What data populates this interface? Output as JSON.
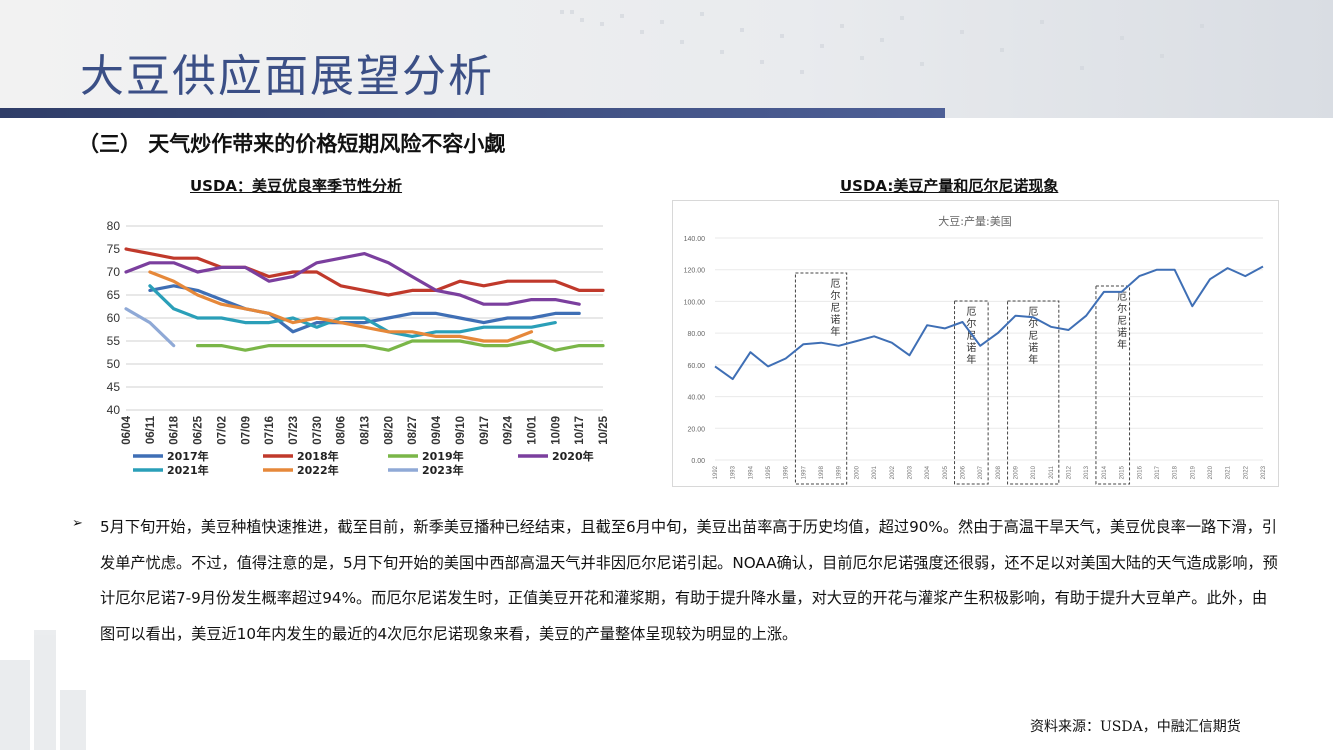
{
  "header": {
    "title": "大豆供应面展望分析",
    "subtitle": "（三）  天气炒作带来的价格短期风险不容小觑"
  },
  "colors": {
    "title_blue": "#3b4f86",
    "bar_dark": "#2f3d68"
  },
  "chart_left_caption": "USDA：美豆优良率季节性分析",
  "chart_right_caption": "USDA:美豆产量和厄尔尼诺现象",
  "chart_data": [
    {
      "type": "line",
      "title": "",
      "x": [
        "06/04",
        "06/11",
        "06/18",
        "06/25",
        "07/02",
        "07/09",
        "07/16",
        "07/23",
        "07/30",
        "08/06",
        "08/13",
        "08/20",
        "08/27",
        "09/04",
        "09/10",
        "09/17",
        "09/24",
        "10/01",
        "10/09",
        "10/17",
        "10/25"
      ],
      "yticks": [
        40,
        45,
        50,
        55,
        60,
        65,
        70,
        75,
        80
      ],
      "ylim": [
        40,
        80
      ],
      "legend_position": "bottom",
      "series": [
        {
          "name": "2017年",
          "color": "#3f6fb5",
          "values": [
            null,
            66,
            67,
            66,
            64,
            62,
            61,
            57,
            59,
            59,
            59,
            60,
            61,
            61,
            60,
            59,
            60,
            60,
            61,
            61,
            null
          ]
        },
        {
          "name": "2018年",
          "color": "#c0392b",
          "values": [
            75,
            74,
            73,
            73,
            71,
            71,
            69,
            70,
            70,
            67,
            66,
            65,
            66,
            66,
            68,
            67,
            68,
            68,
            68,
            66,
            66
          ]
        },
        {
          "name": "2019年",
          "color": "#7ab648",
          "values": [
            null,
            null,
            null,
            54,
            54,
            53,
            54,
            54,
            54,
            54,
            54,
            53,
            55,
            55,
            55,
            54,
            54,
            55,
            53,
            54,
            54
          ]
        },
        {
          "name": "2020年",
          "color": "#7b3f9e",
          "values": [
            70,
            72,
            72,
            70,
            71,
            71,
            68,
            69,
            72,
            73,
            74,
            72,
            69,
            66,
            65,
            63,
            63,
            64,
            64,
            63,
            null
          ]
        },
        {
          "name": "2021年",
          "color": "#2a9fb8",
          "values": [
            null,
            67,
            62,
            60,
            60,
            59,
            59,
            60,
            58,
            60,
            60,
            57,
            56,
            57,
            57,
            58,
            58,
            58,
            59,
            null,
            null
          ]
        },
        {
          "name": "2022年",
          "color": "#e6883a",
          "values": [
            null,
            70,
            68,
            65,
            63,
            62,
            61,
            59,
            60,
            59,
            58,
            57,
            57,
            56,
            56,
            55,
            55,
            57,
            null,
            null,
            null
          ]
        },
        {
          "name": "2023年",
          "color": "#8fa9d6",
          "values": [
            62,
            59,
            54,
            null,
            null,
            null,
            null,
            null,
            null,
            null,
            null,
            null,
            null,
            null,
            null,
            null,
            null,
            null,
            null,
            null,
            null
          ]
        }
      ]
    },
    {
      "type": "line",
      "title": "大豆:产量:美国",
      "x": [
        "1992",
        "1993",
        "1994",
        "1995",
        "1996",
        "1997",
        "1998",
        "1999",
        "2000",
        "2001",
        "2002",
        "2003",
        "2004",
        "2005",
        "2006",
        "2007",
        "2008",
        "2009",
        "2010",
        "2011",
        "2012",
        "2013",
        "2014",
        "2015",
        "2016",
        "2017",
        "2018",
        "2019",
        "2020",
        "2021",
        "2022",
        "2023"
      ],
      "yticks": [
        0,
        20,
        40,
        60,
        80,
        100,
        120,
        140
      ],
      "yticklabels": [
        "0.00",
        "20.00",
        "40.00",
        "60.00",
        "80.00",
        "100.00",
        "120.00",
        "140.00"
      ],
      "ylim": [
        0,
        140
      ],
      "series": [
        {
          "name": "大豆:产量:美国",
          "color": "#3f6fb5",
          "values": [
            59,
            51,
            68,
            59,
            64,
            73,
            74,
            72,
            75,
            78,
            74,
            66,
            85,
            83,
            87,
            72,
            80,
            91,
            90,
            84,
            82,
            91,
            106,
            106,
            116,
            120,
            120,
            97,
            114,
            121,
            116,
            122
          ]
        }
      ],
      "annotations": [
        {
          "label": "厄尔尼诺年",
          "from": "1997",
          "to": "1999"
        },
        {
          "label": "厄尔尼诺年",
          "from": "2006",
          "to": "2007"
        },
        {
          "label": "厄尔尼诺年",
          "from": "2009",
          "to": "2011"
        },
        {
          "label": "厄尔尼诺年",
          "from": "2014",
          "to": "2015"
        }
      ]
    }
  ],
  "body": {
    "bullet_symbol": "➢",
    "paragraph": "5月下旬开始，美豆种植快速推进，截至目前，新季美豆播种已经结束，且截至6月中旬，美豆出苗率高于历史均值，超过90%。然由于高温干旱天气，美豆优良率一路下滑，引发单产忧虑。不过，值得注意的是，5月下旬开始的美国中西部高温天气并非因厄尔尼诺引起。NOAA确认，目前厄尔尼诺强度还很弱，还不足以对美国大陆的天气造成影响，预计厄尔尼诺7-9月份发生概率超过94%。而厄尔尼诺发生时，正值美豆开花和灌浆期，有助于提升降水量，对大豆的开花与灌浆产生积极影响，有助于提升大豆单产。此外，由图可以看出，美豆近10年内发生的最近的4次厄尔尼诺现象来看，美豆的产量整体呈现较为明显的上涨。"
  },
  "source": "资料来源：USDA，中融汇信期货"
}
